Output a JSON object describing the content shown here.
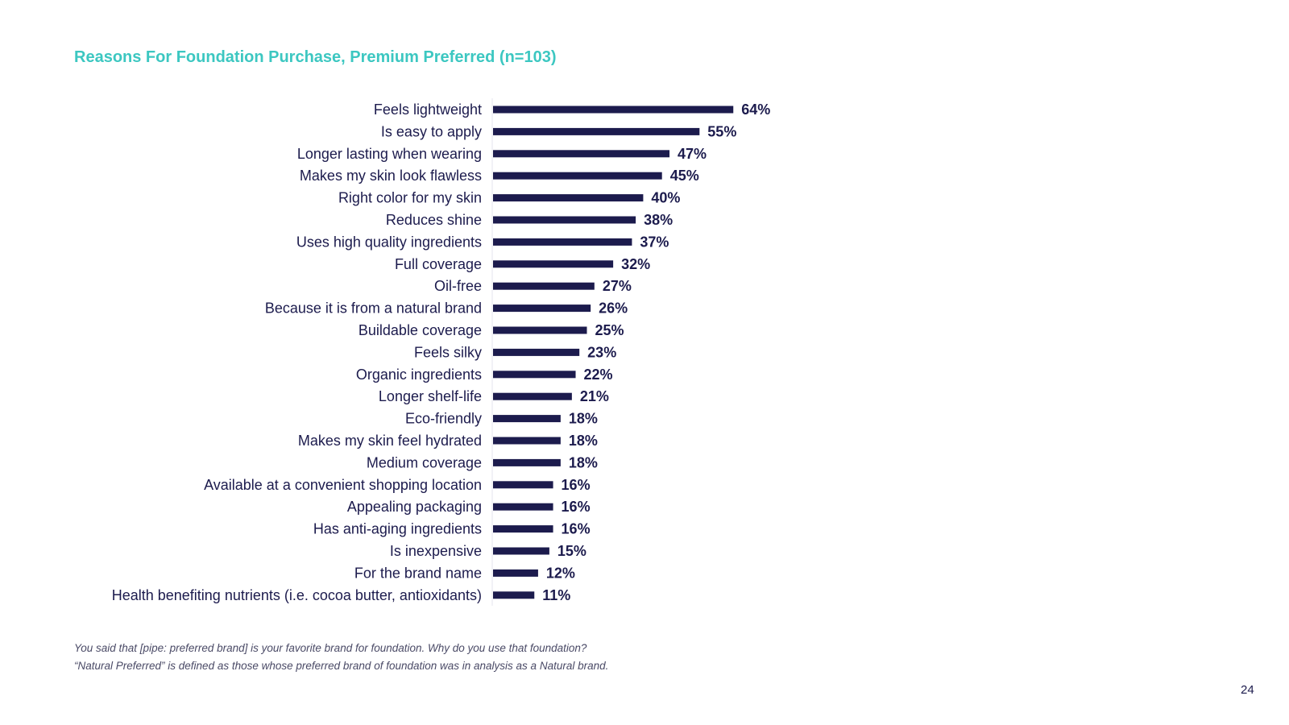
{
  "colors": {
    "title": "#3cc7c1",
    "bar": "#1c1b4d",
    "text": "#1c1b4d",
    "footnote": "#4a4a66"
  },
  "page_number": "24",
  "footnotes": [
    "You said that [pipe: preferred brand] is your favorite brand for foundation. Why do you use that foundation?",
    "“Natural Preferred” is defined as those whose preferred brand of foundation was in analysis as a Natural brand."
  ],
  "chart_data": {
    "type": "bar",
    "orientation": "horizontal",
    "title": "Reasons For Foundation Purchase, Premium Preferred (n=103)",
    "xlim": [
      0,
      100
    ],
    "grid": false,
    "legend": "none",
    "categories": [
      "Feels lightweight",
      "Is easy to apply",
      "Longer lasting when wearing",
      "Makes my skin look flawless",
      "Right color for my skin",
      "Reduces shine",
      "Uses high quality ingredients",
      "Full coverage",
      "Oil-free",
      "Because it is from a natural brand",
      "Buildable coverage",
      "Feels silky",
      "Organic ingredients",
      "Longer shelf-life",
      "Eco-friendly",
      "Makes my skin feel hydrated",
      "Medium coverage",
      "Available at a convenient shopping location",
      "Appealing packaging",
      "Has anti-aging ingredients",
      "Is inexpensive",
      "For the brand name",
      "Health benefiting nutrients (i.e. cocoa butter, antioxidants)"
    ],
    "values": [
      64,
      55,
      47,
      45,
      40,
      38,
      37,
      32,
      27,
      26,
      25,
      23,
      22,
      21,
      18,
      18,
      18,
      16,
      16,
      16,
      15,
      12,
      11
    ],
    "value_labels": [
      "64%",
      "55%",
      "47%",
      "45%",
      "40%",
      "38%",
      "37%",
      "32%",
      "27%",
      "26%",
      "25%",
      "23%",
      "22%",
      "21%",
      "18%",
      "18%",
      "18%",
      "16%",
      "16%",
      "16%",
      "15%",
      "12%",
      "11%"
    ]
  }
}
